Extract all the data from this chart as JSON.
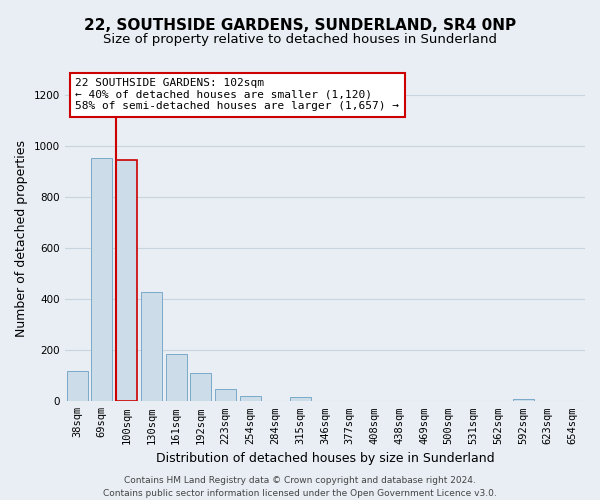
{
  "title": "22, SOUTHSIDE GARDENS, SUNDERLAND, SR4 0NP",
  "subtitle": "Size of property relative to detached houses in Sunderland",
  "xlabel": "Distribution of detached houses by size in Sunderland",
  "ylabel": "Number of detached properties",
  "categories": [
    "38sqm",
    "69sqm",
    "100sqm",
    "130sqm",
    "161sqm",
    "192sqm",
    "223sqm",
    "254sqm",
    "284sqm",
    "315sqm",
    "346sqm",
    "377sqm",
    "408sqm",
    "438sqm",
    "469sqm",
    "500sqm",
    "531sqm",
    "562sqm",
    "592sqm",
    "623sqm",
    "654sqm"
  ],
  "bar_heights": [
    120,
    955,
    945,
    430,
    185,
    112,
    48,
    20,
    0,
    17,
    0,
    0,
    0,
    0,
    0,
    0,
    0,
    0,
    10,
    0,
    0
  ],
  "bar_color": "#ccdce8",
  "bar_edge_color": "#7aaac8",
  "highlight_bar_index": 2,
  "highlight_edge_color": "#cc0000",
  "vline_color": "#cc0000",
  "ylim": [
    0,
    1280
  ],
  "yticks": [
    0,
    200,
    400,
    600,
    800,
    1000,
    1200
  ],
  "annotation_title": "22 SOUTHSIDE GARDENS: 102sqm",
  "annotation_line1": "← 40% of detached houses are smaller (1,120)",
  "annotation_line2": "58% of semi-detached houses are larger (1,657) →",
  "annotation_box_color": "#ffffff",
  "annotation_box_edge_color": "#cc0000",
  "footer_line1": "Contains HM Land Registry data © Crown copyright and database right 2024.",
  "footer_line2": "Contains public sector information licensed under the Open Government Licence v3.0.",
  "background_color": "#e8eef4",
  "plot_background_color": "#e8eef4",
  "grid_color": "#c8d4de",
  "title_fontsize": 11,
  "subtitle_fontsize": 9.5,
  "axis_label_fontsize": 9,
  "tick_fontsize": 7.5,
  "annotation_fontsize": 8,
  "footer_fontsize": 6.5
}
